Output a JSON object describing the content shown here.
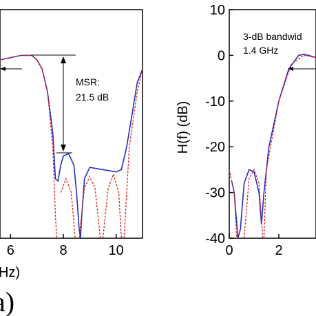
{
  "chart_data": [
    {
      "type": "line",
      "xlabel": "Hz)",
      "annotations": [
        "MSR:",
        "21.5 dB"
      ],
      "xlim": [
        5.6,
        11
      ],
      "ylim": [
        -40,
        10
      ],
      "xticks": [
        6,
        8,
        10
      ],
      "series": [
        {
          "color": "#1f2fbf",
          "dashed": false,
          "x": [
            5.6,
            6.0,
            6.4,
            6.8,
            7.0,
            7.2,
            7.4,
            7.6,
            7.7,
            7.8,
            7.9,
            8.0,
            8.2,
            8.4,
            8.5,
            8.6,
            8.65,
            8.7,
            8.8,
            9.0,
            9.5,
            10.0,
            10.2,
            10.4,
            10.6,
            10.8,
            11.0
          ],
          "values": [
            -1,
            -0.5,
            0,
            0,
            -1,
            -3,
            -8,
            -17,
            -27,
            -27.5,
            -24,
            -22,
            -21.5,
            -24,
            -30,
            -38,
            -40,
            -35,
            -27,
            -24.5,
            -25,
            -25.5,
            -25,
            -20,
            -13,
            -6,
            -3
          ]
        },
        {
          "color": "#e0201b",
          "dashed": true,
          "x": [
            5.6,
            6.4,
            6.8,
            7.0,
            7.2,
            7.4,
            7.6,
            7.7,
            7.75,
            7.8,
            7.9,
            8.1,
            8.3,
            8.45,
            8.5,
            8.6,
            8.8,
            9.0,
            9.2,
            9.4,
            9.45,
            9.5,
            9.7,
            9.9,
            10.1,
            10.2,
            10.25,
            10.3,
            10.5,
            10.8,
            11.0
          ],
          "values": [
            -1,
            0,
            0,
            -1,
            -3,
            -8,
            -20,
            -35,
            -40,
            null,
            -30,
            -27,
            -30,
            -40,
            null,
            -40,
            -29,
            -26.5,
            -29,
            -40,
            null,
            -40,
            -29,
            -26,
            -30,
            -40,
            null,
            -40,
            -20,
            -8,
            -3
          ]
        }
      ]
    },
    {
      "type": "line",
      "ylabel": "H(f) (dB)",
      "annotations": [
        "3-dB bandwid",
        "1.4 GHz"
      ],
      "xlim": [
        0,
        3.5
      ],
      "ylim": [
        -40,
        10
      ],
      "xticks": [
        0,
        2
      ],
      "yticks": [
        -40,
        -30,
        -20,
        -10,
        0,
        10
      ],
      "series": [
        {
          "color": "#1f2fbf",
          "dashed": false,
          "x": [
            0.1,
            0.2,
            0.35,
            0.45,
            0.6,
            0.8,
            1.0,
            1.2,
            1.3,
            1.4,
            1.6,
            2.0,
            2.4,
            2.8,
            3.0,
            3.2,
            3.5
          ],
          "values": [
            -27.5,
            -30,
            -40,
            -38,
            -28,
            -25,
            -25.5,
            -30,
            -37,
            -30,
            -20,
            -10,
            -3,
            0,
            0.2,
            0,
            -0.5
          ]
        },
        {
          "color": "#e0201b",
          "dashed": true,
          "x": [
            0,
            0.2,
            0.3,
            0.45,
            0.6,
            0.8,
            1.0,
            1.2,
            1.35,
            1.38,
            1.4,
            1.5,
            2.0,
            2.5,
            3.0,
            3.5
          ],
          "values": [
            -25,
            -30,
            -40,
            null,
            -40,
            -27,
            -25,
            -28,
            -40,
            null,
            -40,
            -25,
            -10,
            -2,
            0,
            -0.5
          ]
        }
      ]
    }
  ],
  "panel_label": "a)"
}
